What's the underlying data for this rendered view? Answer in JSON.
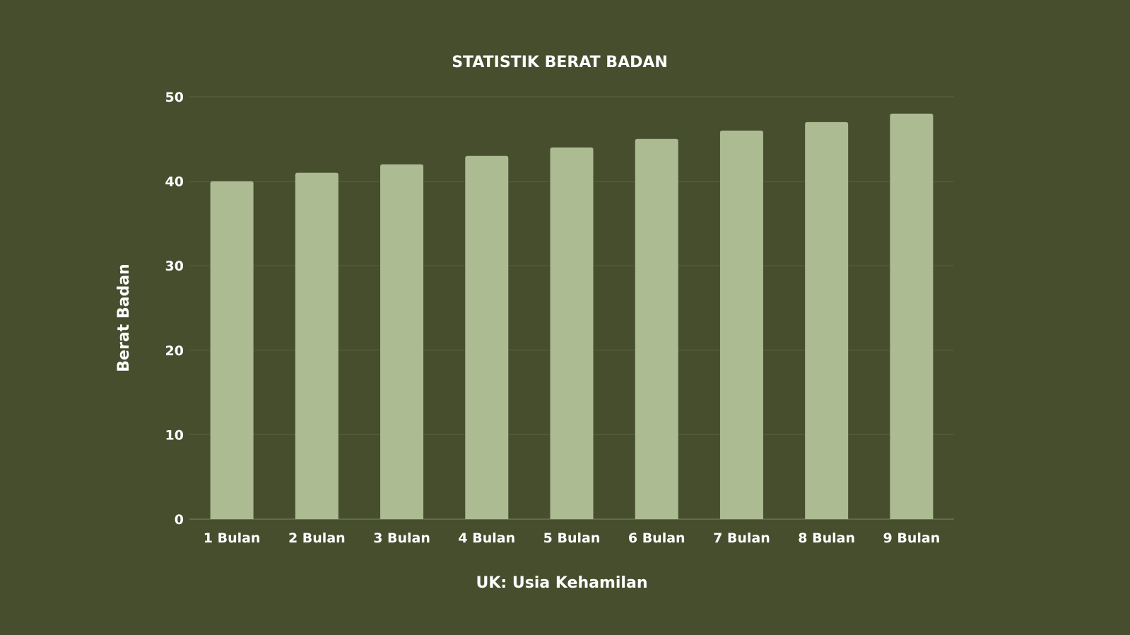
{
  "chart_data": {
    "type": "bar",
    "title": "STATISTIK BERAT BADAN",
    "xlabel": "UK: Usia Kehamilan",
    "ylabel": "Berat Badan",
    "categories": [
      "1 Bulan",
      "2 Bulan",
      "3 Bulan",
      "4 Bulan",
      "5 Bulan",
      "6 Bulan",
      "7 Bulan",
      "8 Bulan",
      "9 Bulan"
    ],
    "series": [
      {
        "values": [
          40,
          41,
          42,
          43,
          44,
          45,
          46,
          47,
          48
        ]
      }
    ],
    "ylim": [
      0,
      50
    ],
    "yticks": [
      0,
      10,
      20,
      30,
      40,
      50
    ],
    "grid": true,
    "legend": "none"
  },
  "colors": {
    "background": "#464e2e",
    "bar": "#adbb93",
    "text": "#ffffff",
    "grid": "#5a6240"
  }
}
